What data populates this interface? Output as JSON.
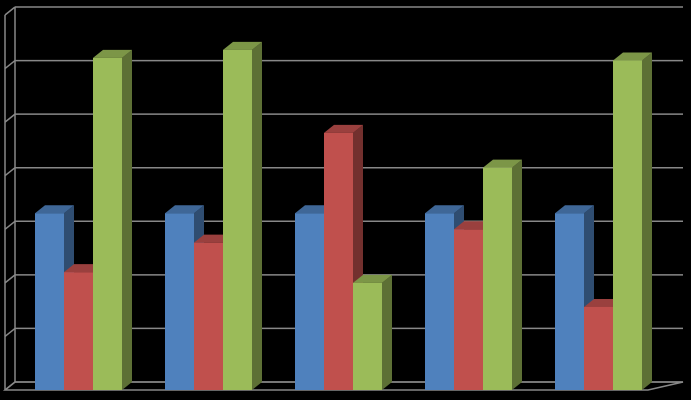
{
  "chart_data": {
    "type": "bar3d",
    "categories": [
      null,
      null,
      null,
      null,
      null
    ],
    "series": [
      {
        "color": "#4f81bd",
        "values": [
          3.3,
          3.3,
          3.3,
          3.3,
          3.3
        ]
      },
      {
        "color": "#c0504d",
        "values": [
          2.2,
          2.75,
          4.8,
          3.0,
          1.55
        ]
      },
      {
        "color": "#9bbb59",
        "values": [
          6.2,
          6.35,
          2.0,
          4.15,
          6.15
        ]
      }
    ],
    "ylim": [
      0,
      7
    ],
    "yticks": [
      0,
      1,
      2,
      3,
      4,
      5,
      6,
      7
    ],
    "grid": true
  }
}
